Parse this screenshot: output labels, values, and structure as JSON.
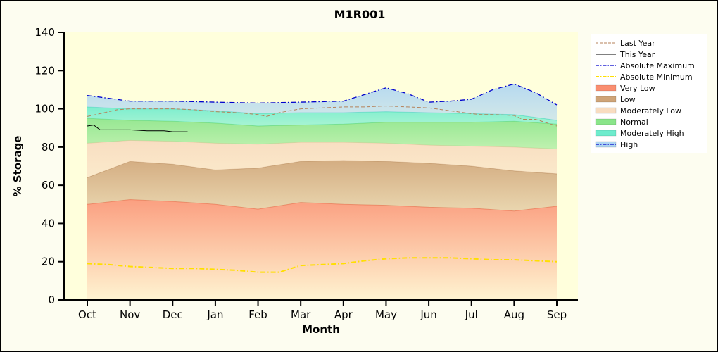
{
  "colors": {
    "figure_bg": "#fdfdf0",
    "plot_bg": "#ffffdc",
    "axis": "#000000",
    "legend_bg": "#ffffff",
    "legend_border": "#000000"
  },
  "chart_data": {
    "type": "area",
    "title": "M1R001",
    "xlabel": "Month",
    "ylabel": "% Storage",
    "ylim": [
      0,
      140
    ],
    "y_ticks": [
      0,
      20,
      40,
      60,
      80,
      100,
      120,
      140
    ],
    "categories": [
      "Oct",
      "Nov",
      "Dec",
      "Jan",
      "Feb",
      "Mar",
      "Apr",
      "May",
      "Jun",
      "Jul",
      "Aug",
      "Sep"
    ],
    "grid": false,
    "legend_position": "right",
    "bands": [
      {
        "name": "Very Low",
        "color": "#fa8e70",
        "edge": "#f07858",
        "top_opacity": 0.85,
        "bottom_opacity": 0.1,
        "values": [
          50,
          52.5,
          51.5,
          50,
          47.5,
          51,
          50,
          49.5,
          48.5,
          48,
          46.5,
          49
        ]
      },
      {
        "name": "Low",
        "color": "#cfa478",
        "edge": "#b98e60",
        "top_opacity": 0.9,
        "bottom_opacity": 0.45,
        "values": [
          64,
          72.5,
          71,
          68,
          69,
          72.5,
          73,
          72.5,
          71.5,
          70,
          67.5,
          66
        ]
      },
      {
        "name": "Moderately Low",
        "color": "#f8dcc0",
        "edge": "#ecc9a4",
        "top_opacity": 0.95,
        "bottom_opacity": 0.6,
        "values": [
          82,
          83.5,
          83,
          82,
          81.5,
          82.5,
          82.5,
          82,
          81,
          80.5,
          80,
          79
        ]
      },
      {
        "name": "Normal",
        "color": "#8ae58a",
        "edge": "#6fd56f",
        "top_opacity": 0.9,
        "bottom_opacity": 0.55,
        "values": [
          95,
          94,
          93.5,
          92.5,
          91,
          91.5,
          92,
          93,
          93,
          93,
          93.5,
          92
        ]
      },
      {
        "name": "Moderately High",
        "color": "#6eeccd",
        "edge": "#4cdcb8",
        "top_opacity": 0.9,
        "bottom_opacity": 0.6,
        "values": [
          101,
          100,
          100,
          99,
          97.5,
          98,
          98,
          98.5,
          98,
          97.5,
          97,
          94
        ]
      },
      {
        "name": "High",
        "color": "#aed5f2",
        "edge": null,
        "top_opacity": 0.9,
        "bottom_opacity": 0.55,
        "x": [
          0,
          1,
          2,
          3,
          4,
          5,
          6,
          6.5,
          7,
          7.5,
          8,
          8.5,
          9,
          9.5,
          10,
          10.5,
          11
        ],
        "values": [
          107,
          104,
          104,
          103.5,
          103,
          103.5,
          104,
          107.5,
          111,
          108,
          103.5,
          104,
          105,
          110,
          113,
          108.5,
          102
        ]
      }
    ],
    "lines": [
      {
        "name": "Absolute Minimum",
        "color": "#ffdf00",
        "width": 2,
        "dash": "dashdot",
        "x": [
          0,
          0.5,
          1,
          1.5,
          2,
          2.5,
          3,
          3.5,
          4,
          4.5,
          5,
          5.5,
          6,
          6.5,
          7,
          7.5,
          8,
          8.5,
          9,
          9.5,
          10,
          10.5,
          11
        ],
        "values": [
          19,
          18.5,
          17.5,
          17,
          16.5,
          16.5,
          16,
          15.5,
          14.5,
          14.5,
          18,
          18.5,
          19,
          20.5,
          21.5,
          22,
          22,
          22,
          21.5,
          21,
          21,
          20.5,
          20
        ]
      },
      {
        "name": "Last Year",
        "color": "#b5825a",
        "width": 1,
        "dash": "dash",
        "x": [
          0,
          0.3,
          0.7,
          1,
          1.5,
          2,
          2.5,
          3,
          3.5,
          4,
          4.2,
          4.5,
          5,
          5.5,
          6,
          6.5,
          7,
          7.5,
          8,
          8.5,
          9,
          9.2,
          9.5,
          10,
          10.2,
          10.5,
          11
        ],
        "values": [
          96,
          97.5,
          99.5,
          100,
          100,
          100,
          99.5,
          98.5,
          98,
          97,
          96,
          98,
          100,
          100.5,
          101,
          101,
          101.5,
          101,
          100.5,
          99,
          97.5,
          97,
          97,
          96.5,
          94.5,
          94.5,
          91
        ]
      },
      {
        "name": "Absolute Maximum",
        "color": "#0000cc",
        "width": 1.3,
        "dash": "dashdot",
        "x": [
          0,
          1,
          2,
          3,
          4,
          5,
          6,
          6.5,
          7,
          7.5,
          8,
          8.5,
          9,
          9.5,
          10,
          10.5,
          11
        ],
        "values": [
          107,
          104,
          104,
          103.5,
          103,
          103.5,
          104,
          107.5,
          111,
          108,
          103.5,
          104,
          105,
          110,
          113,
          108.5,
          102
        ]
      },
      {
        "name": "This Year",
        "color": "#000000",
        "width": 1,
        "dash": "solid",
        "x": [
          0,
          0.15,
          0.3,
          0.5,
          0.8,
          1,
          1.4,
          1.8,
          2,
          2.35
        ],
        "values": [
          91,
          91.5,
          89,
          89,
          89,
          89,
          88.5,
          88.5,
          88,
          88
        ]
      }
    ]
  },
  "legend": {
    "items": [
      {
        "label": "Last Year",
        "marker": "line",
        "color": "#b5825a",
        "dash": "dash",
        "width": 1
      },
      {
        "label": "This Year",
        "marker": "line",
        "color": "#000000",
        "dash": "solid",
        "width": 1
      },
      {
        "label": "Absolute Maximum",
        "marker": "line",
        "color": "#0000cc",
        "dash": "dashdot",
        "width": 1.3
      },
      {
        "label": "Absolute Minimum",
        "marker": "line",
        "color": "#ffdf00",
        "dash": "dashdot",
        "width": 2
      },
      {
        "label": "Very Low",
        "marker": "band",
        "color": "#fa8e70"
      },
      {
        "label": "Low",
        "marker": "band",
        "color": "#cfa478"
      },
      {
        "label": "Moderately Low",
        "marker": "band",
        "color": "#f8dcc0"
      },
      {
        "label": "Normal",
        "marker": "band",
        "color": "#8ae58a"
      },
      {
        "label": "Moderately High",
        "marker": "band",
        "color": "#6eeccd"
      },
      {
        "label": "High",
        "marker": "band",
        "color": "#aed5f2",
        "overlay": {
          "color": "#0000cc",
          "dash": "dashdot"
        }
      }
    ]
  }
}
